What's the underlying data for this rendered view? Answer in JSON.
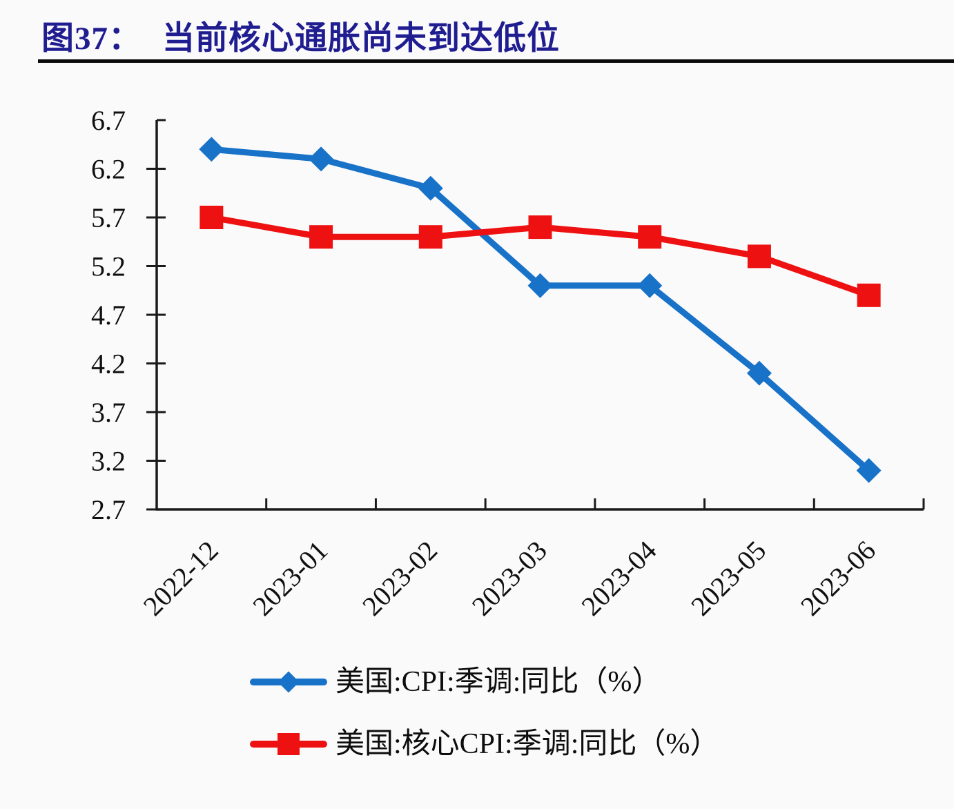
{
  "header": {
    "figure_label": "图37：",
    "figure_title": "当前核心通胀尚未到达低位"
  },
  "chart_data": {
    "type": "line",
    "title": "当前核心通胀尚未到达低位",
    "categories": [
      "2022-12",
      "2023-01",
      "2023-02",
      "2023-03",
      "2023-04",
      "2023-05",
      "2023-06"
    ],
    "series": [
      {
        "name": "美国:CPI:季调:同比（%）",
        "color": "#1772c8",
        "marker": "diamond",
        "values": [
          6.4,
          6.3,
          6.0,
          5.0,
          5.0,
          4.1,
          3.1
        ]
      },
      {
        "name": "美国:核心CPI:季调:同比（%）",
        "color": "#ee1111",
        "marker": "square",
        "values": [
          5.7,
          5.5,
          5.5,
          5.6,
          5.5,
          5.3,
          4.9
        ]
      }
    ],
    "ylim": [
      2.7,
      6.7
    ],
    "ytick_step": 0.5,
    "ytick_labels": [
      "2.7",
      "3.2",
      "3.7",
      "4.2",
      "4.7",
      "5.2",
      "5.7",
      "6.2",
      "6.7"
    ],
    "xlabel": "",
    "ylabel": "",
    "grid": false,
    "legend_position": "bottom-left"
  },
  "colors": {
    "title": "#201d90",
    "axis": "#1a1a1a",
    "divider": "#0a0a0a",
    "background": "#fafafb"
  }
}
